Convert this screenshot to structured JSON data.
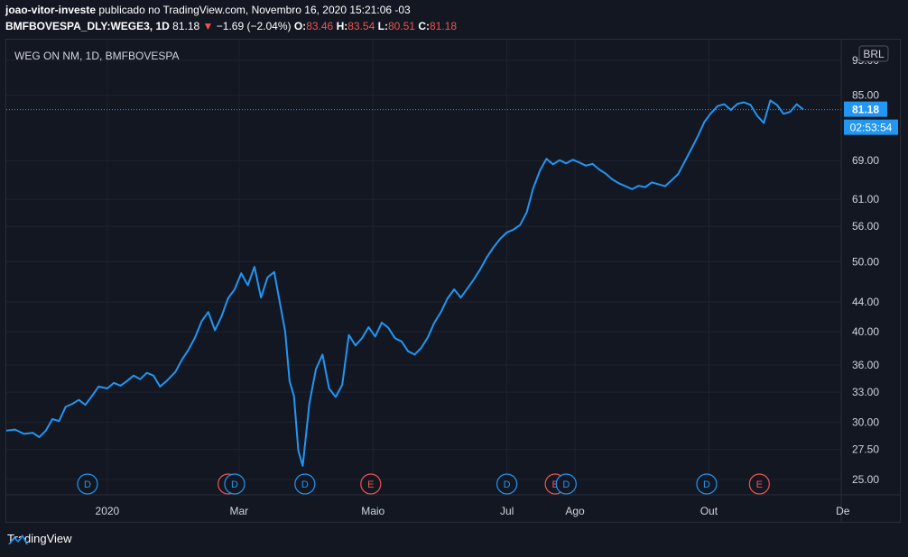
{
  "header": {
    "user": "joao-vitor-investe",
    "published": "publicado no TradingView.com, Novembro 16, 2020 15:21:06 -03",
    "symbol": "BMFBOVESPA_DLY:WEGE3, 1D",
    "last": "81.18",
    "arrow": "▼",
    "change": "−1.69 (−2.04%)",
    "o_label": "O:",
    "o_value": "83.46",
    "h_label": "H:",
    "h_value": "83.54",
    "l_label": "L:",
    "l_value": "80.51",
    "c_label": "C:",
    "c_value": "81.18"
  },
  "colors": {
    "background": "#131722",
    "line": "#2196f3",
    "grid": "#1f2330",
    "dividend": "#2196f3",
    "earnings": "#ef5350",
    "price_tag": "#2196f3"
  },
  "footer": {
    "brand": "TradingView",
    "logo_icon": "tradingview-logo-icon"
  },
  "chart_data": {
    "type": "line",
    "title": "WEG ON NM, 1D, BMFBOVESPA",
    "currency_label": "BRL",
    "y_scale": "log",
    "y_ticks": [
      "95.00",
      "85.00",
      "69.00",
      "61.00",
      "56.00",
      "50.00",
      "44.00",
      "40.00",
      "36.00",
      "33.00",
      "30.00",
      "27.50",
      "25.00"
    ],
    "x_ticks": [
      "2020",
      "Mar",
      "Maio",
      "Jul",
      "Ago",
      "Out",
      "De"
    ],
    "last_price_label": "81.18",
    "countdown_label": "02:53:54",
    "grid": true,
    "series": [
      {
        "points": [
          [
            "2019-11-16",
            29.2
          ],
          [
            "2019-11-20",
            29.3
          ],
          [
            "2019-11-24",
            28.9
          ],
          [
            "2019-11-28",
            29.0
          ],
          [
            "2019-12-01",
            28.6
          ],
          [
            "2019-12-04",
            29.2
          ],
          [
            "2019-12-07",
            30.3
          ],
          [
            "2019-12-10",
            30.1
          ],
          [
            "2019-12-13",
            31.5
          ],
          [
            "2019-12-16",
            31.8
          ],
          [
            "2019-12-19",
            32.2
          ],
          [
            "2019-12-22",
            31.7
          ],
          [
            "2019-12-25",
            32.6
          ],
          [
            "2019-12-28",
            33.6
          ],
          [
            "2020-01-01",
            33.4
          ],
          [
            "2020-01-04",
            34.0
          ],
          [
            "2020-01-07",
            33.7
          ],
          [
            "2020-01-10",
            34.2
          ],
          [
            "2020-01-13",
            34.8
          ],
          [
            "2020-01-16",
            34.4
          ],
          [
            "2020-01-19",
            35.1
          ],
          [
            "2020-01-22",
            34.8
          ],
          [
            "2020-01-25",
            33.6
          ],
          [
            "2020-01-28",
            34.2
          ],
          [
            "2020-02-01",
            35.2
          ],
          [
            "2020-02-04",
            36.6
          ],
          [
            "2020-02-07",
            37.8
          ],
          [
            "2020-02-10",
            39.3
          ],
          [
            "2020-02-13",
            41.4
          ],
          [
            "2020-02-16",
            42.6
          ],
          [
            "2020-02-19",
            40.2
          ],
          [
            "2020-02-22",
            42.0
          ],
          [
            "2020-02-25",
            44.5
          ],
          [
            "2020-02-28",
            45.8
          ],
          [
            "2020-03-02",
            48.2
          ],
          [
            "2020-03-05",
            46.4
          ],
          [
            "2020-03-08",
            49.2
          ],
          [
            "2020-03-11",
            44.6
          ],
          [
            "2020-03-14",
            47.6
          ],
          [
            "2020-03-17",
            48.4
          ],
          [
            "2020-03-20",
            43.2
          ],
          [
            "2020-03-22",
            40.1
          ],
          [
            "2020-03-24",
            34.2
          ],
          [
            "2020-03-26",
            32.6
          ],
          [
            "2020-03-28",
            27.4
          ],
          [
            "2020-03-30",
            26.1
          ],
          [
            "2020-04-02",
            31.8
          ],
          [
            "2020-04-05",
            35.5
          ],
          [
            "2020-04-08",
            37.2
          ],
          [
            "2020-04-11",
            33.4
          ],
          [
            "2020-04-14",
            32.5
          ],
          [
            "2020-04-17",
            33.8
          ],
          [
            "2020-04-20",
            39.6
          ],
          [
            "2020-04-23",
            38.3
          ],
          [
            "2020-04-26",
            39.2
          ],
          [
            "2020-04-29",
            40.6
          ],
          [
            "2020-05-02",
            39.4
          ],
          [
            "2020-05-05",
            41.2
          ],
          [
            "2020-05-08",
            40.5
          ],
          [
            "2020-05-11",
            39.2
          ],
          [
            "2020-05-14",
            38.8
          ],
          [
            "2020-05-17",
            37.6
          ],
          [
            "2020-05-20",
            37.2
          ],
          [
            "2020-05-23",
            38.0
          ],
          [
            "2020-05-26",
            39.3
          ],
          [
            "2020-05-29",
            41.2
          ],
          [
            "2020-06-01",
            42.6
          ],
          [
            "2020-06-04",
            44.5
          ],
          [
            "2020-06-07",
            45.8
          ],
          [
            "2020-06-10",
            44.6
          ],
          [
            "2020-06-13",
            45.9
          ],
          [
            "2020-06-16",
            47.3
          ],
          [
            "2020-06-19",
            48.9
          ],
          [
            "2020-06-22",
            50.8
          ],
          [
            "2020-06-25",
            52.4
          ],
          [
            "2020-06-28",
            53.8
          ],
          [
            "2020-07-01",
            54.9
          ],
          [
            "2020-07-04",
            55.4
          ],
          [
            "2020-07-07",
            56.2
          ],
          [
            "2020-07-10",
            58.5
          ],
          [
            "2020-07-13",
            63.2
          ],
          [
            "2020-07-16",
            66.8
          ],
          [
            "2020-07-19",
            69.4
          ],
          [
            "2020-07-22",
            68.2
          ],
          [
            "2020-07-25",
            69.1
          ],
          [
            "2020-07-28",
            68.4
          ],
          [
            "2020-07-31",
            69.2
          ],
          [
            "2020-08-03",
            68.6
          ],
          [
            "2020-08-06",
            67.9
          ],
          [
            "2020-08-09",
            68.3
          ],
          [
            "2020-08-12",
            67.1
          ],
          [
            "2020-08-15",
            66.2
          ],
          [
            "2020-08-18",
            65.0
          ],
          [
            "2020-08-21",
            64.2
          ],
          [
            "2020-08-24",
            63.6
          ],
          [
            "2020-08-27",
            63.0
          ],
          [
            "2020-08-30",
            63.7
          ],
          [
            "2020-09-02",
            63.4
          ],
          [
            "2020-09-05",
            64.4
          ],
          [
            "2020-09-08",
            64.0
          ],
          [
            "2020-09-11",
            63.6
          ],
          [
            "2020-09-14",
            64.8
          ],
          [
            "2020-09-17",
            66.1
          ],
          [
            "2020-09-20",
            68.8
          ],
          [
            "2020-09-23",
            71.6
          ],
          [
            "2020-09-26",
            74.6
          ],
          [
            "2020-09-29",
            78.1
          ],
          [
            "2020-10-02",
            80.3
          ],
          [
            "2020-10-05",
            82.1
          ],
          [
            "2020-10-08",
            82.6
          ],
          [
            "2020-10-11",
            81.1
          ],
          [
            "2020-10-14",
            82.7
          ],
          [
            "2020-10-17",
            83.1
          ],
          [
            "2020-10-20",
            82.4
          ],
          [
            "2020-10-23",
            79.6
          ],
          [
            "2020-10-26",
            77.8
          ],
          [
            "2020-10-29",
            83.6
          ],
          [
            "2020-11-01",
            82.4
          ],
          [
            "2020-11-04",
            80.1
          ],
          [
            "2020-11-07",
            80.6
          ],
          [
            "2020-11-10",
            82.6
          ],
          [
            "2020-11-13",
            81.18
          ]
        ]
      }
    ],
    "events": [
      {
        "kind": "dividend",
        "label": "D",
        "date": "2019-12-23"
      },
      {
        "kind": "earnings",
        "label": "E",
        "date": "2020-02-25"
      },
      {
        "kind": "dividend",
        "label": "D",
        "date": "2020-02-28"
      },
      {
        "kind": "dividend",
        "label": "D",
        "date": "2020-03-31"
      },
      {
        "kind": "earnings",
        "label": "E",
        "date": "2020-04-30"
      },
      {
        "kind": "dividend",
        "label": "D",
        "date": "2020-07-01"
      },
      {
        "kind": "earnings",
        "label": "E",
        "date": "2020-07-23"
      },
      {
        "kind": "dividend",
        "label": "D",
        "date": "2020-07-28"
      },
      {
        "kind": "dividend",
        "label": "D",
        "date": "2020-09-30"
      },
      {
        "kind": "earnings",
        "label": "E",
        "date": "2020-10-24"
      }
    ]
  }
}
